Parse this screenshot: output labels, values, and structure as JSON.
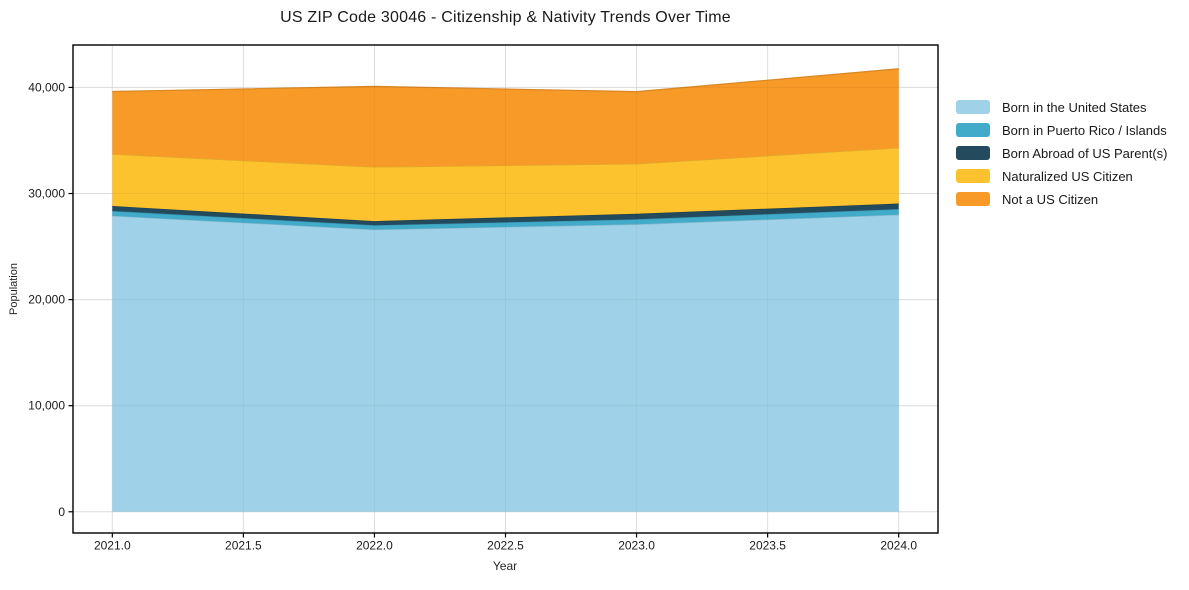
{
  "figure": {
    "title": "US ZIP Code 30046 - Citizenship & Nativity Trends Over Time",
    "xlabel": "Year",
    "ylabel": "Population"
  },
  "chart_data": {
    "type": "area",
    "stacked": true,
    "title": "US ZIP Code 30046 - Citizenship & Nativity Trends Over Time",
    "xlabel": "Year",
    "ylabel": "Population",
    "x": [
      2021,
      2022,
      2023,
      2024
    ],
    "series": [
      {
        "name": "Born in the United States",
        "color": "#9fd2e8",
        "values": [
          27900,
          26600,
          27100,
          28000
        ]
      },
      {
        "name": "Born in Puerto Rico / Islands",
        "color": "#41abc9",
        "values": [
          450,
          400,
          470,
          530
        ]
      },
      {
        "name": "Born Abroad of US Parent(s)",
        "color": "#234a5d",
        "values": [
          470,
          400,
          530,
          530
        ]
      },
      {
        "name": "Naturalized US Citizen",
        "color": "#fcc32f",
        "values": [
          4900,
          5100,
          4700,
          5250
        ]
      },
      {
        "name": "Not a US Citizen",
        "color": "#f89a28",
        "values": [
          5900,
          7600,
          6800,
          7450
        ]
      }
    ],
    "stacked_totals": [
      39620,
      40100,
      39600,
      41760
    ],
    "xlim": [
      2020.85,
      2024.15
    ],
    "ylim": [
      -2000,
      44000
    ],
    "xticks": {
      "values": [
        2021.0,
        2021.5,
        2022.0,
        2022.5,
        2023.0,
        2023.5,
        2024.0
      ],
      "labels": [
        "2021.0",
        "2021.5",
        "2022.0",
        "2022.5",
        "2023.0",
        "2023.5",
        "2024.0"
      ]
    },
    "yticks": {
      "values": [
        0,
        10000,
        20000,
        30000,
        40000
      ],
      "labels": [
        "0",
        "10,000",
        "20,000",
        "30,000",
        "40,000"
      ]
    },
    "grid": true,
    "grid_color": "#e7e7e7",
    "spine_color": "#000000",
    "tick_text_color": "#1a1a1a",
    "legend_position": "right"
  }
}
